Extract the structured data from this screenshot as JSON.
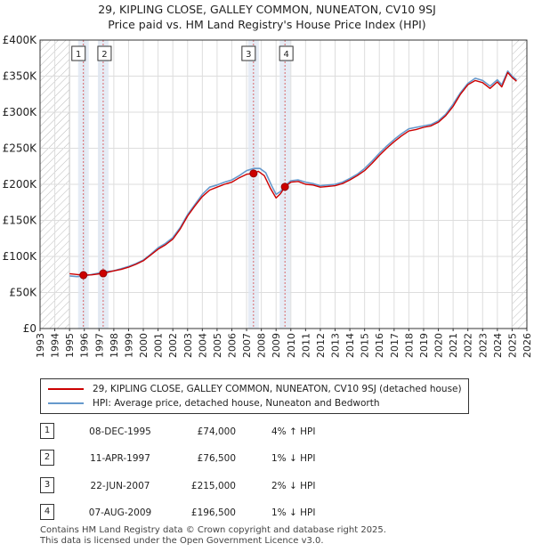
{
  "title_line1": "29, KIPLING CLOSE, GALLEY COMMON, NUNEATON, CV10 9SJ",
  "title_line2": "Price paid vs. HM Land Registry's House Price Index (HPI)",
  "legend": {
    "property": "29, KIPLING CLOSE, GALLEY COMMON, NUNEATON, CV10 9SJ (detached house)",
    "hpi": "HPI: Average price, detached house, Nuneaton and Bedworth"
  },
  "sales": [
    {
      "num": "1",
      "date": "08-DEC-1995",
      "price": "£74,000",
      "hpi": "4% ↑ HPI"
    },
    {
      "num": "2",
      "date": "11-APR-1997",
      "price": "£76,500",
      "hpi": "1% ↓ HPI"
    },
    {
      "num": "3",
      "date": "22-JUN-2007",
      "price": "£215,000",
      "hpi": "2% ↓ HPI"
    },
    {
      "num": "4",
      "date": "07-AUG-2009",
      "price": "£196,500",
      "hpi": "1% ↓ HPI"
    }
  ],
  "footer": {
    "line1": "Contains HM Land Registry data © Crown copyright and database right 2025.",
    "line2": "This data is licensed under the Open Government Licence v3.0."
  },
  "colors": {
    "property": "#cc0000",
    "hpi": "#6699cc",
    "sale_band": "#dde6f2",
    "hatch": "#bbbbbb",
    "grid": "#dddddd"
  },
  "chart_data": {
    "type": "line",
    "title": "29, KIPLING CLOSE, GALLEY COMMON, NUNEATON, CV10 9SJ — Price paid vs. HM Land Registry's House Price Index (HPI)",
    "xlabel": "",
    "ylabel": "",
    "xlim": [
      1993,
      2026
    ],
    "ylim": [
      0,
      400000
    ],
    "x_ticks": [
      1993,
      1994,
      1995,
      1996,
      1997,
      1998,
      1999,
      2000,
      2001,
      2002,
      2003,
      2004,
      2005,
      2006,
      2007,
      2008,
      2009,
      2010,
      2011,
      2012,
      2013,
      2014,
      2015,
      2016,
      2017,
      2018,
      2019,
      2020,
      2021,
      2022,
      2023,
      2024,
      2025,
      2026
    ],
    "y_ticks": [
      0,
      50000,
      100000,
      150000,
      200000,
      250000,
      300000,
      350000,
      400000
    ],
    "y_tick_labels": [
      "£0",
      "£50K",
      "£100K",
      "£150K",
      "£200K",
      "£250K",
      "£300K",
      "£350K",
      "£400K"
    ],
    "hatched_before": 1995.0,
    "hatched_after": 2025.0,
    "sale_markers": [
      {
        "label": "1",
        "x": 1995.94,
        "price": 74000
      },
      {
        "label": "2",
        "x": 1997.28,
        "price": 76500
      },
      {
        "label": "3",
        "x": 2007.47,
        "price": 215000
      },
      {
        "label": "4",
        "x": 2009.6,
        "price": 196500
      }
    ],
    "series": [
      {
        "name": "HPI: Average price, detached house, Nuneaton and Bedworth",
        "x": [
          1995.0,
          1995.5,
          1996.0,
          1996.5,
          1997.0,
          1997.5,
          1998.0,
          1998.5,
          1999.0,
          1999.5,
          2000.0,
          2000.5,
          2001.0,
          2001.5,
          2002.0,
          2002.5,
          2003.0,
          2003.5,
          2004.0,
          2004.5,
          2005.0,
          2005.5,
          2006.0,
          2006.5,
          2007.0,
          2007.5,
          2007.9,
          2008.3,
          2008.7,
          2009.0,
          2009.3,
          2009.6,
          2010.0,
          2010.5,
          2011.0,
          2011.5,
          2012.0,
          2012.5,
          2013.0,
          2013.5,
          2014.0,
          2014.5,
          2015.0,
          2015.5,
          2016.0,
          2016.5,
          2017.0,
          2017.5,
          2018.0,
          2018.5,
          2019.0,
          2019.5,
          2020.0,
          2020.5,
          2021.0,
          2021.5,
          2022.0,
          2022.5,
          2023.0,
          2023.5,
          2024.0,
          2024.3,
          2024.7,
          2025.0,
          2025.3
        ],
        "values": [
          73000,
          72000,
          73000,
          75000,
          77000,
          79000,
          80000,
          83000,
          86000,
          90000,
          95000,
          103000,
          112000,
          118000,
          126000,
          140000,
          158000,
          172000,
          186000,
          196000,
          199000,
          203000,
          206000,
          212000,
          219000,
          222000,
          222000,
          216000,
          198000,
          186000,
          190000,
          198000,
          205000,
          206000,
          203000,
          201000,
          198000,
          199000,
          200000,
          203000,
          208000,
          214000,
          222000,
          232000,
          243000,
          253000,
          262000,
          270000,
          277000,
          279000,
          281000,
          283000,
          288000,
          297000,
          311000,
          327000,
          340000,
          347000,
          344000,
          336000,
          345000,
          338000,
          357000,
          350000,
          345000
        ]
      },
      {
        "name": "29, KIPLING CLOSE, GALLEY COMMON, NUNEATON, CV10 9SJ (detached house)",
        "x": [
          1995.0,
          1995.5,
          1995.94,
          1996.5,
          1997.28,
          1997.6,
          1998.0,
          1998.5,
          1999.0,
          1999.5,
          2000.0,
          2000.5,
          2001.0,
          2001.5,
          2002.0,
          2002.5,
          2003.0,
          2003.5,
          2004.0,
          2004.5,
          2005.0,
          2005.5,
          2006.0,
          2006.5,
          2007.0,
          2007.47,
          2007.8,
          2008.2,
          2008.6,
          2009.0,
          2009.3,
          2009.6,
          2010.0,
          2010.5,
          2011.0,
          2011.5,
          2012.0,
          2012.5,
          2013.0,
          2013.5,
          2014.0,
          2014.5,
          2015.0,
          2015.5,
          2016.0,
          2016.5,
          2017.0,
          2017.5,
          2018.0,
          2018.5,
          2019.0,
          2019.5,
          2020.0,
          2020.5,
          2021.0,
          2021.5,
          2022.0,
          2022.5,
          2023.0,
          2023.5,
          2024.0,
          2024.3,
          2024.7,
          2025.0,
          2025.3
        ],
        "values": [
          76000,
          75000,
          74000,
          74500,
          76500,
          78000,
          80000,
          82000,
          85000,
          89000,
          94000,
          102000,
          110000,
          116000,
          124000,
          138000,
          156000,
          170000,
          183000,
          192000,
          196000,
          200000,
          203000,
          209000,
          214000,
          215000,
          218000,
          212000,
          195000,
          181000,
          187000,
          196500,
          203000,
          204000,
          200000,
          199000,
          196000,
          197000,
          198000,
          201000,
          206000,
          212000,
          219000,
          229000,
          240000,
          250000,
          259000,
          267000,
          274000,
          276000,
          279000,
          281000,
          286000,
          295000,
          308000,
          325000,
          338000,
          344000,
          341000,
          333000,
          342000,
          335000,
          355000,
          348000,
          343000
        ]
      }
    ]
  }
}
